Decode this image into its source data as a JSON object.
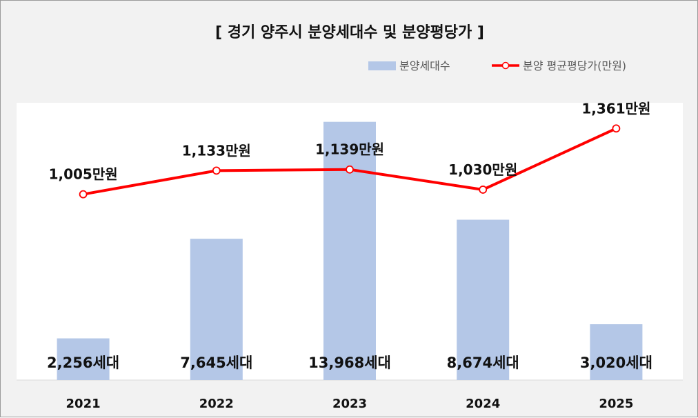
{
  "chart_data": {
    "type": "bar+line",
    "title": "[ 경기 양주시 분양세대수 및 분양평당가 ]",
    "categories": [
      "2021",
      "2022",
      "2023",
      "2024",
      "2025"
    ],
    "series": [
      {
        "name": "분양세대수",
        "type": "bar",
        "axis": "left",
        "color": "#b4c7e7",
        "values": [
          2256,
          7645,
          13968,
          8674,
          3020
        ],
        "labels": [
          "2,256세대",
          "7,645세대",
          "13,968세대",
          "8,674세대",
          "3,020세대"
        ]
      },
      {
        "name": "분양 평균평당가(만원)",
        "type": "line",
        "axis": "right",
        "color": "#ff0000",
        "values": [
          1005,
          1133,
          1139,
          1030,
          1361
        ],
        "labels": [
          "1,005만원",
          "1,133만원",
          "1,139만원",
          "1,030만원",
          "1,361만원"
        ]
      }
    ],
    "y_left_range": [
      0,
      15000
    ],
    "y_right_range": [
      0,
      1500
    ],
    "grid": false,
    "axis_tick_labels_visible": false,
    "legend_position": "top-right"
  }
}
